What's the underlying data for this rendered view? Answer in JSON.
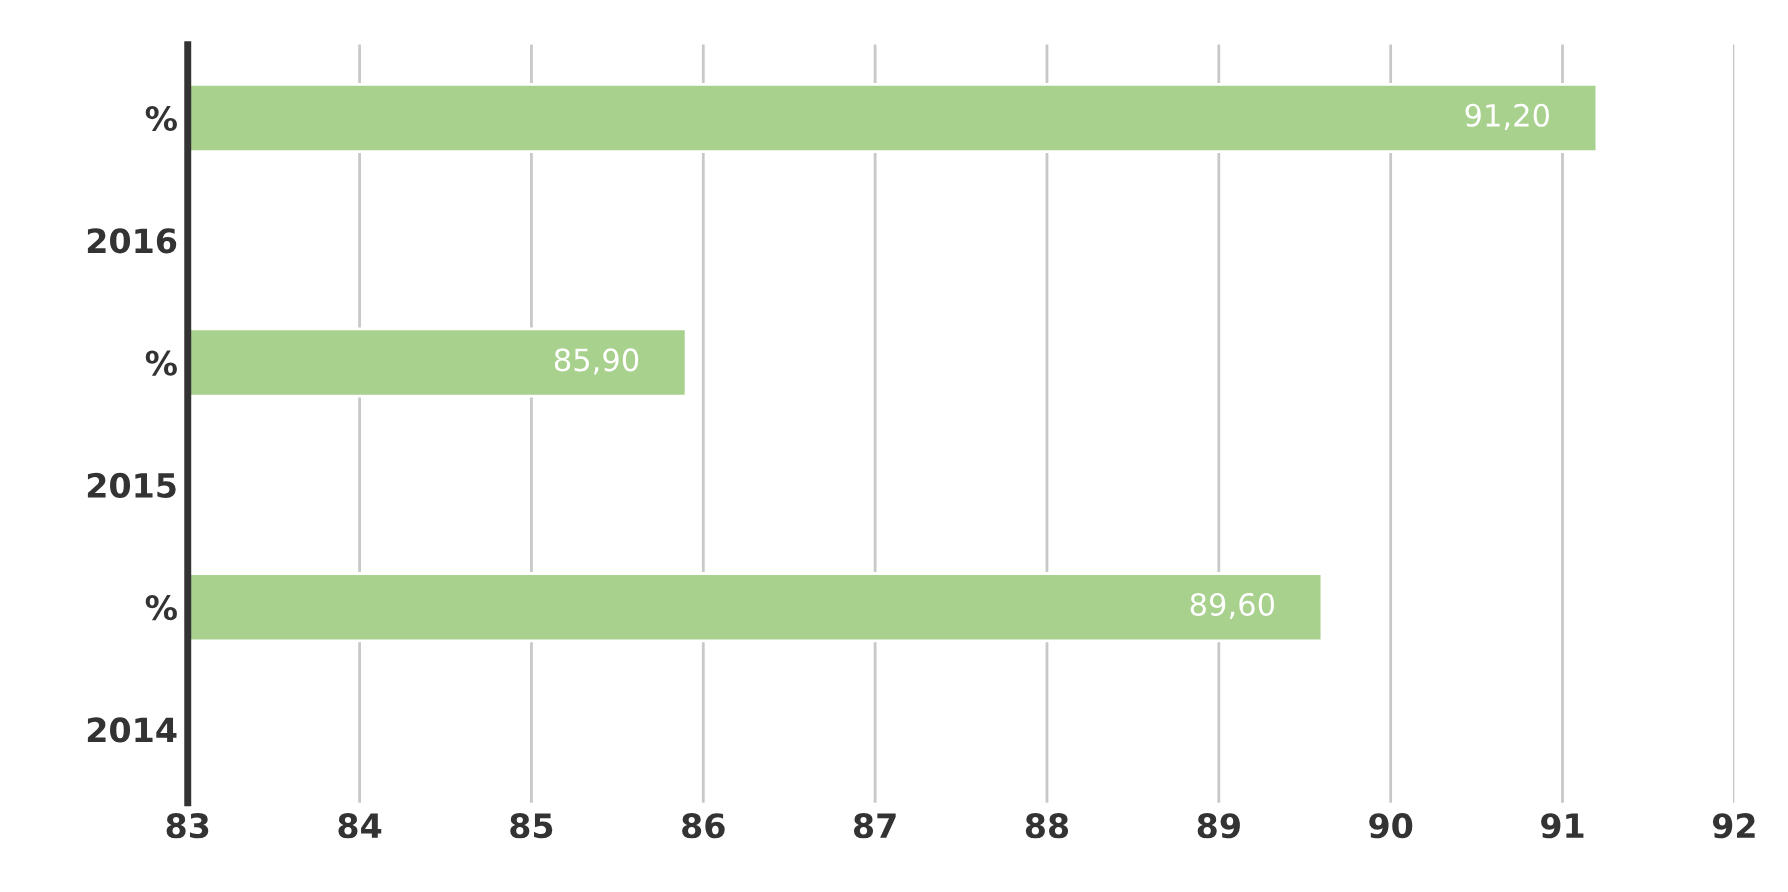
{
  "chart_data": {
    "type": "bar",
    "orientation": "horizontal",
    "categories": [
      "%",
      "2016",
      "%",
      "2015",
      "%",
      "2014"
    ],
    "values": [
      91.2,
      null,
      85.9,
      null,
      89.6,
      null
    ],
    "value_labels": [
      "91,20",
      null,
      "85,90",
      null,
      "89,60",
      null
    ],
    "color": "#a9d18e",
    "xlim": [
      83,
      92
    ],
    "xticks": [
      83,
      84,
      85,
      86,
      87,
      88,
      89,
      90,
      91,
      92
    ],
    "grid": "x"
  }
}
